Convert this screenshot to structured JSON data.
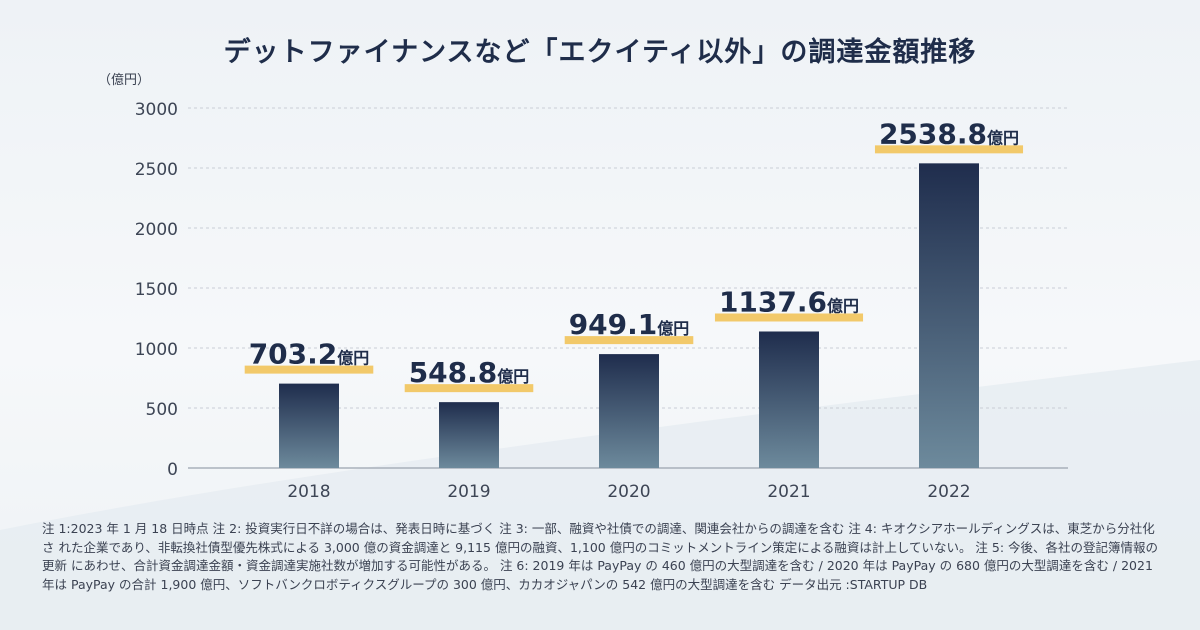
{
  "chart_data": {
    "type": "bar",
    "title": "デットファイナンスなど「エクイティ以外」の調達金額推移",
    "ylabel": "（億円）",
    "categories": [
      "2018",
      "2019",
      "2020",
      "2021",
      "2022"
    ],
    "values": [
      703.2,
      548.8,
      949.1,
      1137.6,
      2538.8
    ],
    "value_labels": [
      "703.2",
      "548.8",
      "949.1",
      "1137.6",
      "2538.8"
    ],
    "value_unit": "億円",
    "ylim": [
      0,
      3000
    ],
    "yticks": [
      "0",
      "500",
      "1000",
      "1500",
      "2000",
      "2500",
      "3000"
    ],
    "grid": true,
    "colors": {
      "bar_top": "#1f2d4d",
      "bar_bottom": "#6d8a9c",
      "highlight": "#f2c96a",
      "label": "#1f2d4a",
      "grid": "#c9ced6"
    }
  },
  "notes": "注 1:2023 年 1 月 18 日時点 注 2: 投資実行日不詳の場合は、発表日時に基づく 注 3: 一部、融資や社債での調達、関連会社からの調達を含む 注 4: キオクシアホールディングスは、東芝から分社化さ れた企業であり、非転換社債型優先株式による 3,000 億の資金調達と 9,115 億円の融資、1,100 億円のコミットメントライン策定による融資は計上していない。 注 5: 今後、各社の登記簿情報の更新 にあわせ、合計資金調達金額・資金調達実施社数が増加する可能性がある。 注 6: 2019 年は PayPay の 460 億円の大型調達を含む / 2020 年は PayPay の 680 億円の大型調達を含む / 2021 年は PayPay の合計 1,900 億円、ソフトバンクロボティクスグループの 300 億円、カカオジャパンの 542 億円の大型調達を含む データ出元 :STARTUP DB"
}
